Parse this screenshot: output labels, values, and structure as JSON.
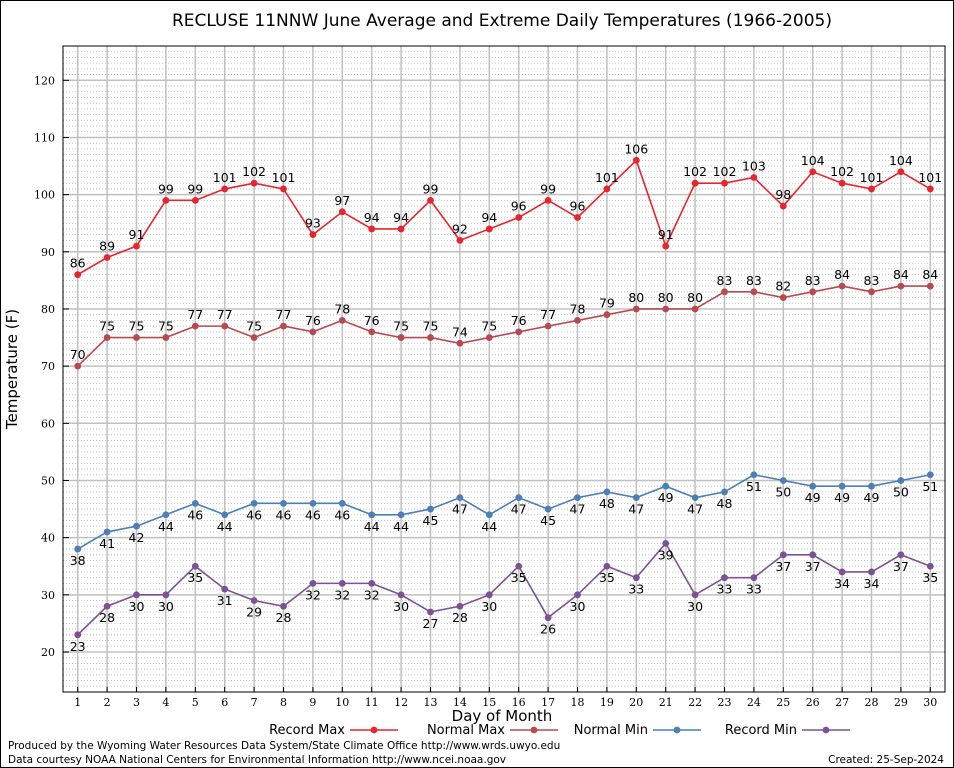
{
  "chart_data": {
    "type": "line",
    "title": "RECLUSE 11NNW June Average and Extreme Daily Temperatures (1966-2005)",
    "xlabel": "Day of Month",
    "ylabel": "Temperature (F)",
    "xlim": [
      0.5,
      30.5
    ],
    "ylim": [
      13,
      126
    ],
    "y_ticks": [
      20,
      30,
      40,
      50,
      60,
      70,
      80,
      90,
      100,
      110,
      120
    ],
    "x": [
      1,
      2,
      3,
      4,
      5,
      6,
      7,
      8,
      9,
      10,
      11,
      12,
      13,
      14,
      15,
      16,
      17,
      18,
      19,
      20,
      21,
      22,
      23,
      24,
      25,
      26,
      27,
      28,
      29,
      30
    ],
    "grid": true,
    "legend_position": "bottom",
    "series": [
      {
        "name": "Record Max",
        "color": "#e8242d",
        "label_position": "above",
        "values": [
          86,
          89,
          91,
          99,
          99,
          101,
          102,
          101,
          93,
          97,
          94,
          94,
          99,
          92,
          94,
          96,
          99,
          96,
          101,
          106,
          91,
          102,
          102,
          103,
          98,
          104,
          102,
          101,
          104,
          101
        ]
      },
      {
        "name": "Normal Max",
        "color": "#b84a4f",
        "label_position": "above",
        "values": [
          70,
          75,
          75,
          75,
          77,
          77,
          75,
          77,
          76,
          78,
          76,
          75,
          75,
          74,
          75,
          76,
          77,
          78,
          79,
          80,
          80,
          80,
          83,
          83,
          82,
          83,
          84,
          83,
          84,
          84
        ]
      },
      {
        "name": "Normal Min",
        "color": "#4a7fb8",
        "label_position": "below",
        "values": [
          38,
          41,
          42,
          44,
          46,
          44,
          46,
          46,
          46,
          46,
          44,
          44,
          45,
          47,
          44,
          47,
          45,
          47,
          48,
          47,
          49,
          47,
          48,
          51,
          50,
          49,
          49,
          49,
          50,
          51
        ]
      },
      {
        "name": "Record Min",
        "color": "#7b5295",
        "label_position": "below",
        "values": [
          23,
          28,
          30,
          30,
          35,
          31,
          29,
          28,
          32,
          32,
          32,
          30,
          27,
          28,
          30,
          35,
          26,
          30,
          35,
          33,
          39,
          30,
          33,
          33,
          37,
          37,
          34,
          34,
          37,
          35
        ]
      }
    ]
  },
  "footer": {
    "produced_by": "Produced by the Wyoming Water Resources Data System/State Climate Office http://www.wrds.uwyo.edu",
    "courtesy": "Data courtesy NOAA National Centers for Environmental Information http://www.ncei.noaa.gov",
    "created": "Created:  25-Sep-2024"
  }
}
